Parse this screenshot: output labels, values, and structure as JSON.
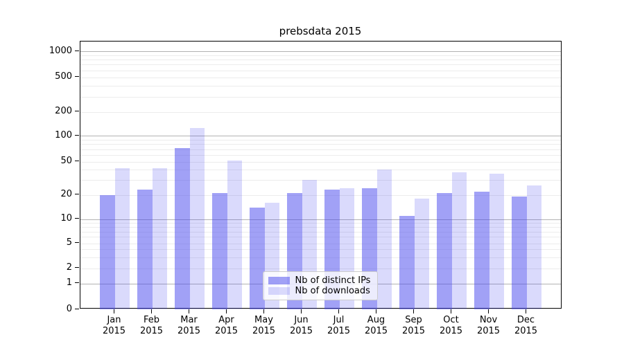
{
  "title": "prebsdata 2015",
  "chart_data": {
    "type": "bar",
    "title": "prebsdata 2015",
    "categories": [
      "Jan",
      "Feb",
      "Mar",
      "Apr",
      "May",
      "Jun",
      "Jul",
      "Aug",
      "Sep",
      "Oct",
      "Nov",
      "Dec"
    ],
    "year_label": "2015",
    "series": [
      {
        "name": "Nb of distinct IPs",
        "color_base": "#4444ee",
        "alpha": 0.5,
        "color_effective": "#a8a8f6",
        "values": [
          20,
          23,
          72,
          21,
          14,
          21,
          23,
          24,
          11,
          21,
          22,
          19
        ]
      },
      {
        "name": "Nb of downloads",
        "color_base": "#4444ee",
        "alpha": 0.2,
        "color_effective": "#dcdcfb",
        "values": [
          42,
          42,
          125,
          52,
          16,
          30,
          24,
          40,
          18,
          37,
          36,
          26
        ]
      }
    ],
    "xlabel": "",
    "ylabel": "",
    "y_scale": "symlog",
    "y_ticks": [
      0,
      1,
      2,
      5,
      10,
      20,
      50,
      100,
      200,
      500,
      1000
    ],
    "y_major_gridlines": [
      1,
      10,
      100,
      1000
    ],
    "y_minor_gridlines": [
      2,
      3,
      4,
      5,
      6,
      7,
      8,
      9,
      20,
      30,
      40,
      50,
      60,
      70,
      80,
      90,
      200,
      300,
      400,
      500,
      600,
      700,
      800,
      900
    ],
    "ylim": [
      0,
      1400
    ],
    "grid": "horizontal only",
    "legend_position": "lower center inside plot",
    "legend_entries": [
      "Nb of distinct IPs",
      "Nb of downloads"
    ]
  },
  "legend": {
    "item1": "Nb of distinct IPs",
    "item2": "Nb of downloads"
  }
}
